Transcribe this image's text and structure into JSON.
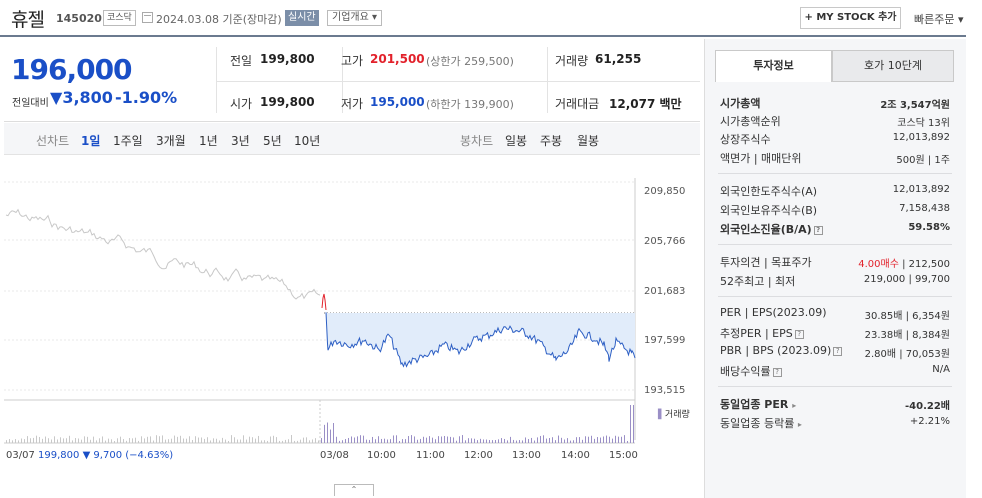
{
  "header": {
    "stock_name": "휴젤",
    "stock_code": "145020",
    "market": "코스닥",
    "date": "2024.03.08 기준(장마감)",
    "realtime": "실시간",
    "company_info": "기업개요",
    "mystock": "+ MY STOCK 추가",
    "quick_order": "빠른주문"
  },
  "price": {
    "current": "196,000",
    "change_label": "전일대비",
    "change_amount": "3,800",
    "change_rate": "-1.90%",
    "prev_close_label": "전일",
    "prev_close": "199,800",
    "high_label": "고가",
    "high": "201,500",
    "upper_limit": "(상한가 259,500)",
    "volume_label": "거래량",
    "volume": "61,255",
    "open_label": "시가",
    "open": "199,800",
    "low_label": "저가",
    "low": "195,000",
    "lower_limit": "(하한가 139,900)",
    "amount_label": "거래대금",
    "amount": "12,077 백만"
  },
  "tabs": {
    "line_label": "선차트",
    "line_items": [
      "1일",
      "1주일",
      "3개월",
      "1년",
      "3년",
      "5년",
      "10년"
    ],
    "candle_label": "봉차트",
    "candle_items": [
      "일봉",
      "주봉",
      "월봉"
    ],
    "selected": "1일"
  },
  "chart": {
    "y_ticks": [
      "209,850",
      "205,766",
      "201,683",
      "197,599",
      "193,515"
    ],
    "volume_label": "거래량",
    "prev_day_summary": {
      "date": "03/07",
      "price": "199,800",
      "change": "▼ 9,700",
      "rate": "(−4.63%)"
    },
    "time_labels": [
      "03/08",
      "10:00",
      "11:00",
      "12:00",
      "13:00",
      "14:00",
      "15:00"
    ],
    "colors": {
      "prev_line": "#c8c8c8",
      "today_line": "#2d5fc4",
      "fill": "#e1ecfa",
      "up": "#e2212b",
      "volume": "#9a8fc6"
    }
  },
  "right_panel": {
    "tabs": [
      "투자정보",
      "호가 10단계"
    ],
    "market_cap_label": "시가총액",
    "market_cap": "2조 3,547억원",
    "cap_rank_label": "시가총액순위",
    "cap_rank": "코스닥 13위",
    "shares_label": "상장주식수",
    "shares": "12,013,892",
    "par_label": "액면가 | 매매단위",
    "par": "500원 | 1주",
    "foreign_limit_label": "외국인한도주식수(A)",
    "foreign_limit": "12,013,892",
    "foreign_hold_label": "외국인보유주식수(B)",
    "foreign_hold": "7,158,438",
    "foreign_ratio_label": "외국인소진율(B/A)",
    "foreign_ratio": "59.58%",
    "opinion_label": "투자의견 | 목표주가",
    "opinion": "4.00매수",
    "target": "212,500",
    "week52_label": "52주최고 | 최저",
    "week52": "219,000 | 99,700",
    "per_label": "PER | EPS(2023.09)",
    "per": "30.85배 | 6,354원",
    "est_per_label": "추정PER | EPS",
    "est_per": "23.38배 | 8,384원",
    "pbr_label": "PBR | BPS (2023.09)",
    "pbr": "2.80배 | 70,053원",
    "div_label": "배당수익률",
    "div": "N/A",
    "ind_per_label": "동일업종 PER",
    "ind_per": "-40.22배",
    "ind_rate_label": "동일업종 등락률",
    "ind_rate": "+2.21%"
  }
}
